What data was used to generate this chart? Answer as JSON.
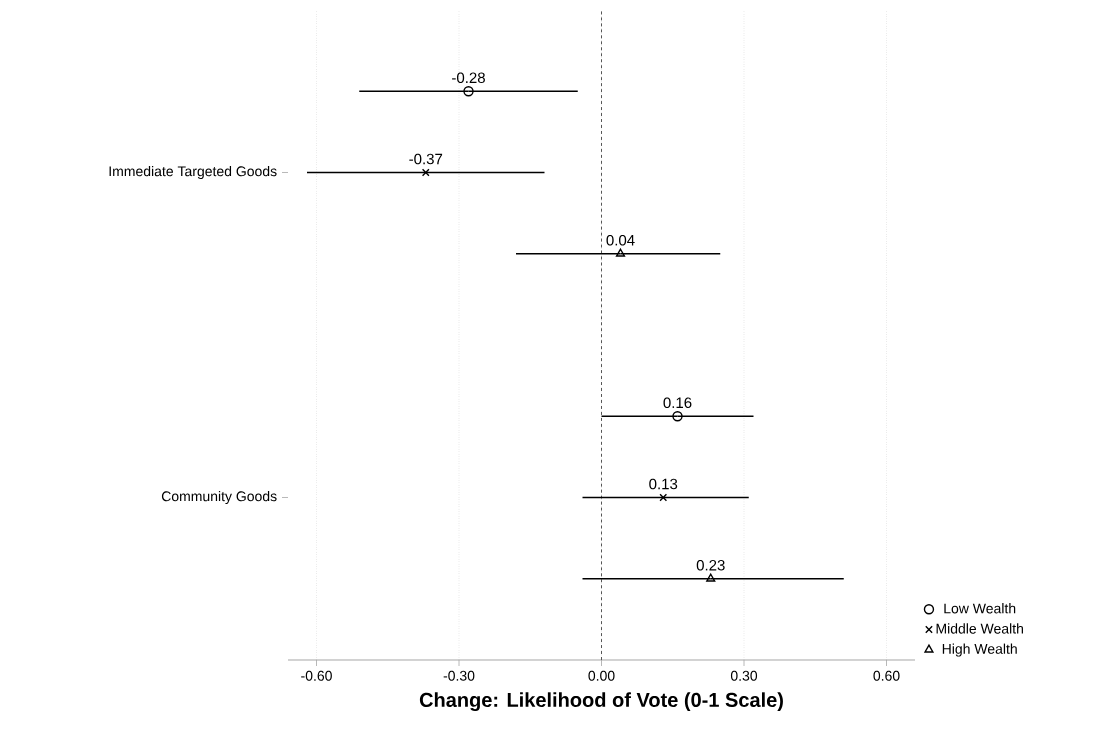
{
  "chart_data": {
    "type": "scatter",
    "orientation": "horizontal",
    "xlabel": "Change: Likelihood of Vote (0-1 Scale)",
    "categories": [
      "Immediate Targeted Goods",
      "Community Goods"
    ],
    "series": [
      {
        "name": "Low Wealth",
        "color": "#000000",
        "marker": "circle",
        "values": [
          -0.28,
          0.16
        ],
        "errors": [
          [
            -0.51,
            -0.05
          ],
          [
            0.0,
            0.32
          ]
        ]
      },
      {
        "name": "Middle Wealth",
        "color": "#000000",
        "marker": "cross",
        "values": [
          -0.37,
          0.13
        ],
        "errors": [
          [
            -0.62,
            -0.12
          ],
          [
            -0.04,
            0.31
          ]
        ]
      },
      {
        "name": "High Wealth",
        "color": "#000000",
        "marker": "triangle",
        "values": [
          0.04,
          0.23
        ],
        "errors": [
          [
            -0.18,
            0.25
          ],
          [
            -0.04,
            0.51
          ]
        ]
      }
    ],
    "xlim": [
      -0.66,
      0.66
    ],
    "xticks": [
      {
        "value": -0.6,
        "label": "-0.60"
      },
      {
        "value": -0.3,
        "label": "-0.30"
      },
      {
        "value": 0,
        "label": "0.00"
      },
      {
        "value": 0.3,
        "label": "0.30"
      },
      {
        "value": 0.6,
        "label": "0.60"
      }
    ],
    "ref_lines": [
      {
        "axis": "x",
        "value": 0,
        "color": "#555555",
        "line_style": "dashed"
      }
    ],
    "grid": "x",
    "legend": "bottom right",
    "data_labels": true
  }
}
